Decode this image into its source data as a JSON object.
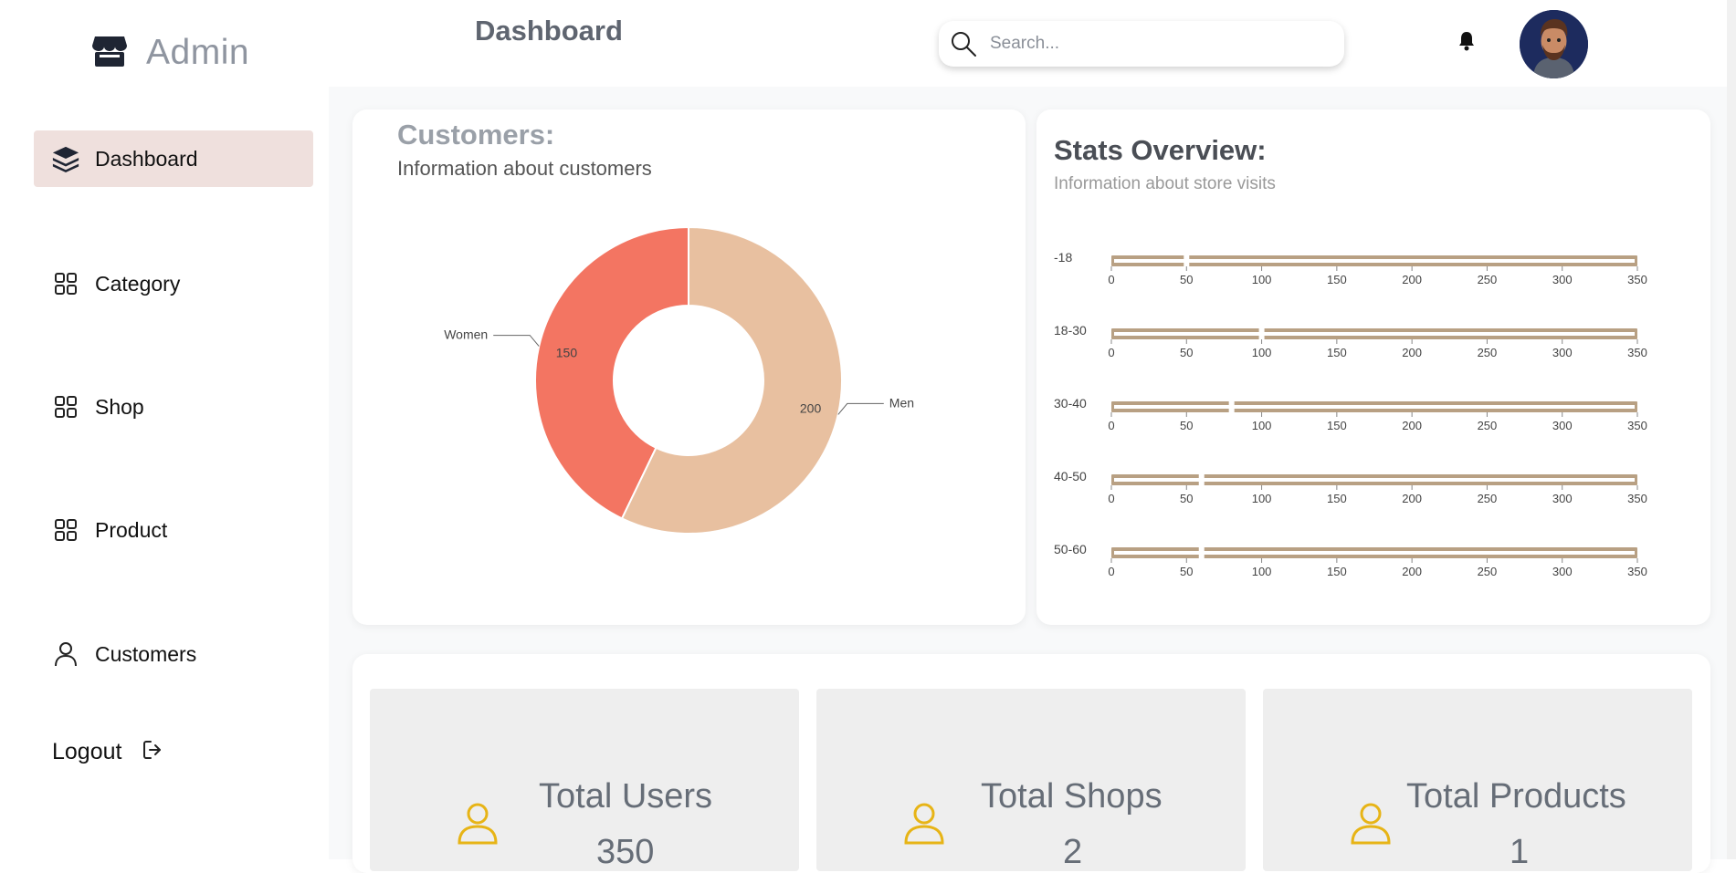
{
  "brand": {
    "title": "Admin",
    "icon": "storefront-icon"
  },
  "header": {
    "title": "Dashboard",
    "search_placeholder": "Search...",
    "notification_icon": "bell-icon"
  },
  "sidebar": {
    "items": [
      {
        "label": "Dashboard",
        "icon": "layers-icon",
        "active": true
      },
      {
        "label": "Category",
        "icon": "grid-icon"
      },
      {
        "label": "Shop",
        "icon": "grid-icon"
      },
      {
        "label": "Product",
        "icon": "grid-icon"
      },
      {
        "label": "Customers",
        "icon": "user-icon"
      }
    ],
    "logout_label": "Logout"
  },
  "customers_card": {
    "title": "Customers:",
    "subtitle": "Information about customers"
  },
  "stats_card": {
    "title": "Stats Overview:",
    "subtitle": "Information about store visits"
  },
  "totals": [
    {
      "label": "Total Users",
      "value": "350"
    },
    {
      "label": "Total Shops",
      "value": "2"
    },
    {
      "label": "Total Products",
      "value": "1"
    }
  ],
  "colors": {
    "women": "#f37562",
    "men": "#e8c0a0",
    "bar": "#b8a083",
    "active_nav": "#efe0dd",
    "user_icon": "#e7b416"
  },
  "chart_data": [
    {
      "type": "pie",
      "title": "Customers",
      "categories": [
        "Women",
        "Men"
      ],
      "values": [
        150,
        200
      ],
      "donut": true
    },
    {
      "type": "bar",
      "orientation": "horizontal",
      "title": "Stats Overview",
      "categories": [
        "-18",
        "18-30",
        "30-40",
        "40-50",
        "50-60"
      ],
      "values": [
        50,
        100,
        80,
        60,
        60
      ],
      "xlim": [
        0,
        350
      ],
      "ticks": [
        0,
        50,
        100,
        150,
        200,
        250,
        300,
        350
      ]
    }
  ]
}
